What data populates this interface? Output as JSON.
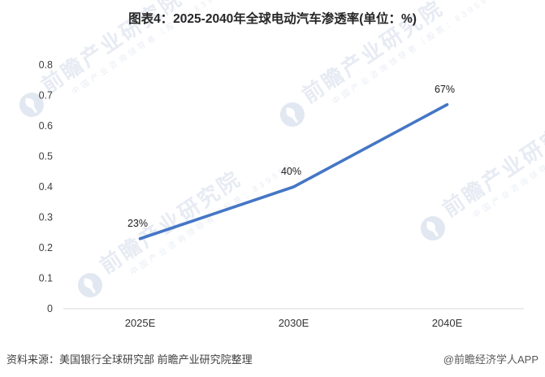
{
  "window": {
    "title": "图表4：2025-2040年全球电动汽车渗透率(单位：%)"
  },
  "footer": {
    "source": "资料来源：美国银行全球研究部 前瞻产业研究院整理",
    "credit": "@前瞻经济学人APP"
  },
  "watermark": {
    "brand": "前瞻产业研究院",
    "tagline": "中国产业咨询领导者（股票：839599）",
    "logo_icon": "qianzhan-logo-icon",
    "text_color": "#e7ebf3",
    "logo_color": "#e2e8f1"
  },
  "chart_data": {
    "type": "line",
    "title": "图表4：2025-2040年全球电动汽车渗透率(单位：%)",
    "unit": "%",
    "categories": [
      "2025E",
      "2030E",
      "2040E"
    ],
    "values": [
      0.23,
      0.4,
      0.67
    ],
    "point_labels": [
      "23%",
      "40%",
      "67%"
    ],
    "ylim": [
      0,
      0.8
    ],
    "yticks": [
      0,
      0.1,
      0.2,
      0.3,
      0.4,
      0.5,
      0.6,
      0.7,
      0.8
    ],
    "ytick_labels": [
      "0",
      "0.1",
      "0.2",
      "0.3",
      "0.4",
      "0.5",
      "0.6",
      "0.7",
      "0.8"
    ],
    "grid": false,
    "legend": "none",
    "line_color": "#4576C5",
    "axis_color": "#d9d9d9",
    "tick_label_color": "#404040",
    "point_label_color": "#1a1a1a"
  }
}
